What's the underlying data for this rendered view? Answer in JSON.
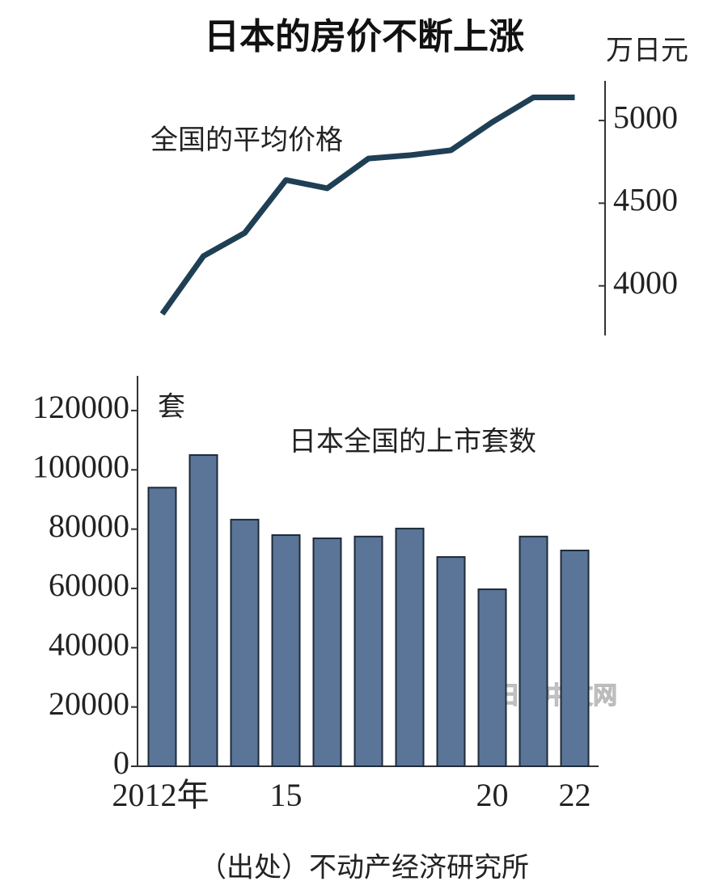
{
  "title": "日本的房价不断上涨",
  "source": "（出处）不动产经济研究所",
  "watermark": "日经中文网",
  "chart_data": [
    {
      "type": "line",
      "unit": "万日元",
      "annotation": "全国的平均价格",
      "categories": [
        "2012年",
        null,
        null,
        "15",
        null,
        null,
        null,
        null,
        "20",
        null,
        "22"
      ],
      "series": [
        {
          "color": "#1f3f55",
          "values": [
            3830,
            4180,
            4320,
            4640,
            4590,
            4770,
            4790,
            4820,
            4990,
            5140,
            5140
          ]
        }
      ],
      "ylim": [
        3700,
        5240
      ],
      "yticks": [
        4000,
        4500,
        5000
      ],
      "axis_side": "right"
    },
    {
      "type": "bar",
      "unit": "套",
      "annotation": "日本全国的上市套数",
      "categories": [
        "2012年",
        null,
        null,
        "15",
        null,
        null,
        null,
        null,
        "20",
        null,
        "22"
      ],
      "series": [
        {
          "color": "#5a7597",
          "values": [
            94000,
            105000,
            83200,
            78000,
            76900,
            77500,
            80200,
            70600,
            59700,
            77500,
            72800
          ]
        }
      ],
      "ylim": [
        0,
        131700
      ],
      "yticks": [
        0,
        20000,
        40000,
        60000,
        80000,
        100000,
        120000
      ],
      "axis_side": "left"
    }
  ]
}
